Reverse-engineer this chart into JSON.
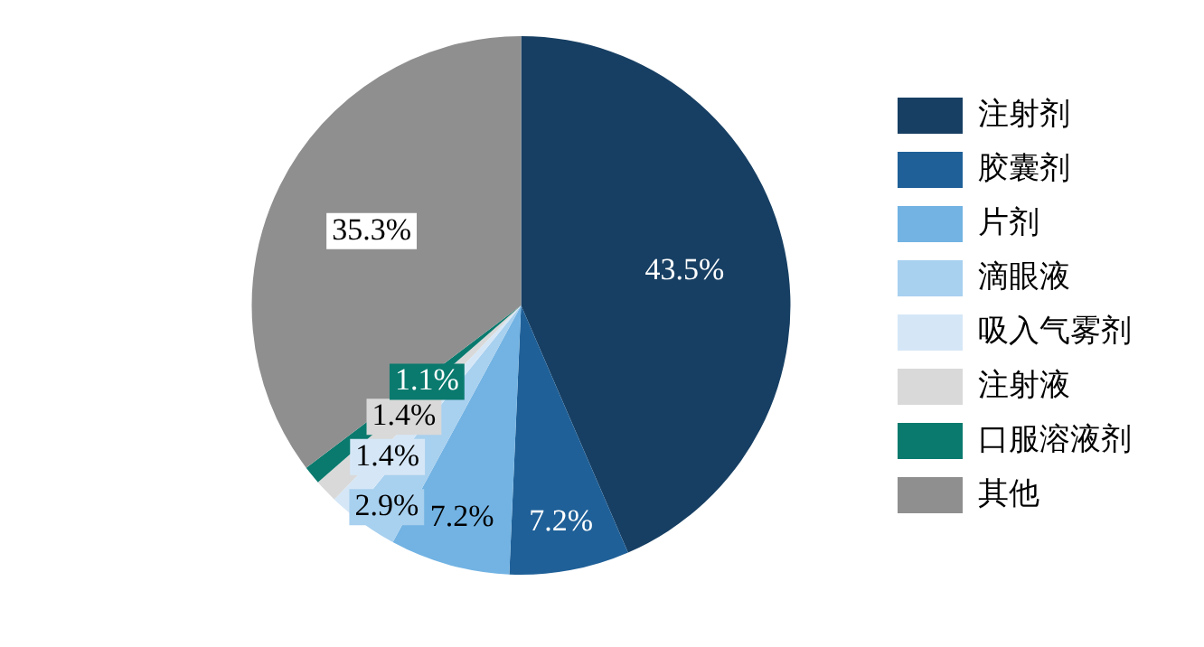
{
  "chart_data": {
    "type": "pie",
    "categories": [
      "注射剂",
      "胶囊剂",
      "片剂",
      "滴眼液",
      "吸入气雾剂",
      "注射液",
      "口服溶液剂",
      "其他"
    ],
    "values": [
      43.5,
      7.2,
      7.2,
      2.9,
      1.4,
      1.4,
      1.1,
      35.3
    ],
    "colors": [
      "#173f63",
      "#1f6098",
      "#72b3e3",
      "#a8d0ef",
      "#d5e7f7",
      "#d9d9d9",
      "#0a7a6e",
      "#8f8f8f"
    ],
    "value_labels": [
      "43.5%",
      "7.2%",
      "7.2%",
      "2.9%",
      "1.4%",
      "1.4%",
      "1.1%",
      "35.3%"
    ],
    "legend": "right"
  }
}
